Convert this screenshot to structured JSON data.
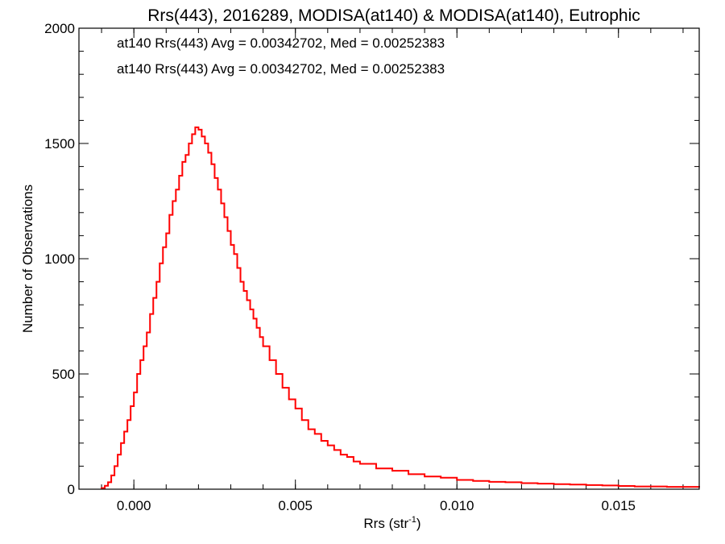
{
  "chart_data": {
    "type": "line",
    "title": "Rrs(443), 2016289, MODISA(at140) & MODISA(at140), Eutrophic",
    "xlabel_main": "Rrs (str",
    "xlabel_sup": "-1",
    "xlabel_close": ")",
    "ylabel": "Number of Observations",
    "xlim": [
      -0.0017,
      0.0175
    ],
    "ylim": [
      0,
      2000
    ],
    "x_ticks": [
      {
        "value": 0.0,
        "label": "0.000"
      },
      {
        "value": 0.005,
        "label": "0.005"
      },
      {
        "value": 0.01,
        "label": "0.010"
      },
      {
        "value": 0.015,
        "label": "0.015"
      }
    ],
    "y_ticks": [
      {
        "value": 0,
        "label": "0"
      },
      {
        "value": 500,
        "label": "500"
      },
      {
        "value": 1000,
        "label": "1000"
      },
      {
        "value": 1500,
        "label": "1500"
      },
      {
        "value": 2000,
        "label": "2000"
      }
    ],
    "x_minor_step": 0.001,
    "y_minor_step": 100,
    "grid": false,
    "annotations": [
      {
        "text": "at140 Rrs(443) Avg = 0.00342702, Med = 0.00252383",
        "color": "#000000"
      },
      {
        "text": "at140 Rrs(443) Avg = 0.00342702, Med = 0.00252383",
        "color": "#ff0000"
      }
    ],
    "series": [
      {
        "color": "#ff0000",
        "x": [
          -0.001,
          -0.0009,
          -0.0008,
          -0.0007,
          -0.0006,
          -0.0005,
          -0.0004,
          -0.0003,
          -0.0002,
          -0.0001,
          0.0,
          0.0001,
          0.0002,
          0.0003,
          0.0004,
          0.0005,
          0.0006,
          0.0007,
          0.0008,
          0.0009,
          0.001,
          0.0011,
          0.0012,
          0.0013,
          0.0014,
          0.0015,
          0.0016,
          0.0017,
          0.0018,
          0.0019,
          0.002,
          0.0021,
          0.0022,
          0.0023,
          0.0024,
          0.0025,
          0.0026,
          0.0027,
          0.0028,
          0.0029,
          0.003,
          0.0031,
          0.0032,
          0.0033,
          0.0034,
          0.0035,
          0.0036,
          0.0037,
          0.0038,
          0.0039,
          0.004,
          0.0042,
          0.0044,
          0.0046,
          0.0048,
          0.005,
          0.0052,
          0.0054,
          0.0056,
          0.0058,
          0.006,
          0.0062,
          0.0064,
          0.0066,
          0.0068,
          0.007,
          0.0075,
          0.008,
          0.0085,
          0.009,
          0.0095,
          0.01,
          0.0105,
          0.011,
          0.0115,
          0.012,
          0.0125,
          0.013,
          0.0135,
          0.014,
          0.0145,
          0.015,
          0.0155,
          0.016,
          0.0165,
          0.017,
          0.0175
        ],
        "y": [
          5,
          15,
          30,
          60,
          100,
          150,
          200,
          250,
          300,
          360,
          420,
          500,
          560,
          620,
          680,
          760,
          830,
          900,
          980,
          1050,
          1110,
          1190,
          1250,
          1300,
          1360,
          1420,
          1450,
          1500,
          1540,
          1570,
          1560,
          1530,
          1500,
          1460,
          1410,
          1350,
          1300,
          1240,
          1180,
          1120,
          1060,
          1020,
          960,
          900,
          860,
          820,
          780,
          740,
          700,
          660,
          620,
          560,
          500,
          440,
          390,
          350,
          300,
          260,
          240,
          210,
          190,
          170,
          150,
          140,
          120,
          110,
          90,
          80,
          65,
          55,
          50,
          40,
          36,
          32,
          30,
          26,
          24,
          22,
          20,
          18,
          16,
          14,
          12,
          12,
          10,
          10,
          8
        ]
      }
    ]
  }
}
